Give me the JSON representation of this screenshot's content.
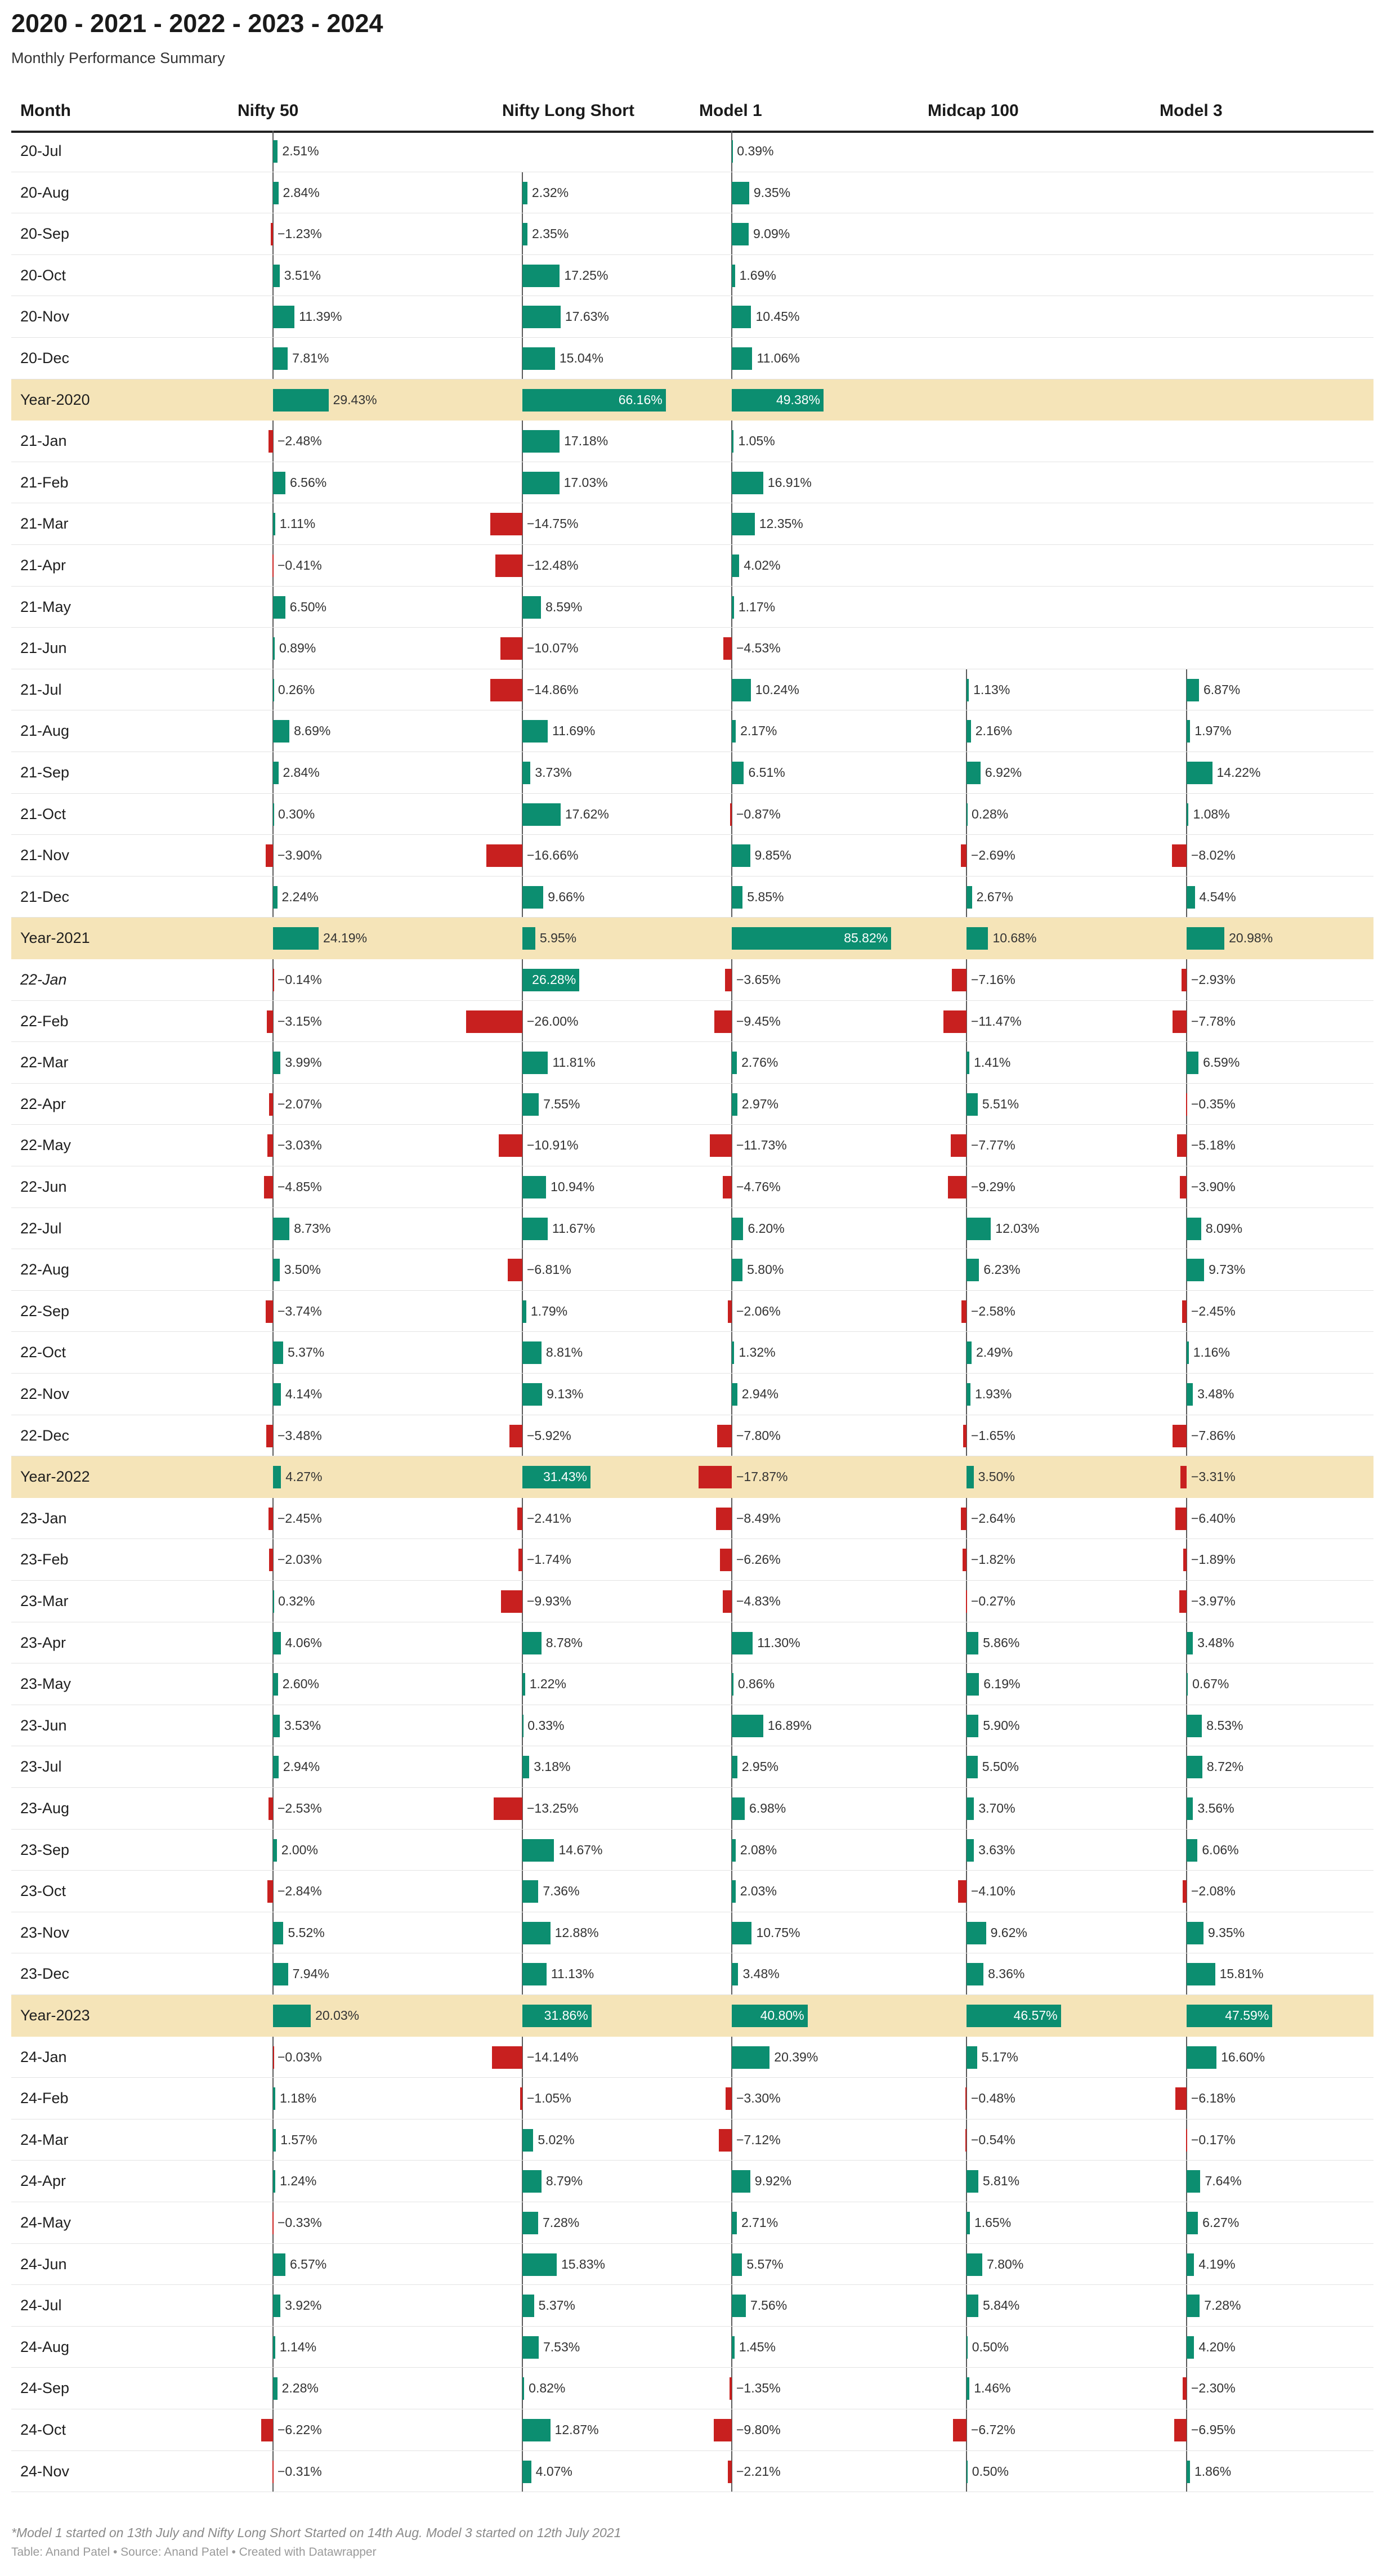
{
  "title": "2020 - 2021 - 2022 - 2023 - 2024",
  "subtitle": "Monthly Performance Summary",
  "footnote": "*Model 1 started on 13th July and Nifty Long Short Started on 14th Aug. Model 3 started on 12th July 2021",
  "credit": "Table: Anand Patel • Source: Anand Patel • Created with Datawrapper",
  "colors": {
    "positive": "#0c8e70",
    "negative": "#c8201f",
    "year_row": "#f5e4b8"
  },
  "chart_data": {
    "type": "table",
    "title": "2020 - 2021 - 2022 - 2023 - 2024",
    "subtitle": "Monthly Performance Summary",
    "month_header": "Month",
    "columns": [
      "Nifty 50",
      "Nifty Long Short",
      "Model 1",
      "Midcap 100",
      "Model 3"
    ],
    "rows": [
      {
        "label": "20-Jul",
        "values": [
          2.51,
          null,
          0.39,
          null,
          null
        ]
      },
      {
        "label": "20-Aug",
        "values": [
          2.84,
          2.32,
          9.35,
          null,
          null
        ]
      },
      {
        "label": "20-Sep",
        "values": [
          -1.23,
          2.35,
          9.09,
          null,
          null
        ]
      },
      {
        "label": "20-Oct",
        "values": [
          3.51,
          17.25,
          1.69,
          null,
          null
        ]
      },
      {
        "label": "20-Nov",
        "values": [
          11.39,
          17.63,
          10.45,
          null,
          null
        ]
      },
      {
        "label": "20-Dec",
        "values": [
          7.81,
          15.04,
          11.06,
          null,
          null
        ]
      },
      {
        "label": "Year-2020",
        "year": true,
        "values": [
          29.43,
          66.16,
          49.38,
          null,
          null
        ]
      },
      {
        "label": "21-Jan",
        "values": [
          -2.48,
          17.18,
          1.05,
          null,
          null
        ]
      },
      {
        "label": "21-Feb",
        "values": [
          6.56,
          17.03,
          16.91,
          null,
          null
        ]
      },
      {
        "label": "21-Mar",
        "values": [
          1.11,
          -14.75,
          12.35,
          null,
          null
        ]
      },
      {
        "label": "21-Apr",
        "values": [
          -0.41,
          -12.48,
          4.02,
          null,
          null
        ]
      },
      {
        "label": "21-May",
        "values": [
          6.5,
          8.59,
          1.17,
          null,
          null
        ]
      },
      {
        "label": "21-Jun",
        "values": [
          0.89,
          -10.07,
          -4.53,
          null,
          null
        ]
      },
      {
        "label": "21-Jul",
        "values": [
          0.26,
          -14.86,
          10.24,
          1.13,
          6.87
        ]
      },
      {
        "label": "21-Aug",
        "values": [
          8.69,
          11.69,
          2.17,
          2.16,
          1.97
        ]
      },
      {
        "label": "21-Sep",
        "values": [
          2.84,
          3.73,
          6.51,
          6.92,
          14.22
        ]
      },
      {
        "label": "21-Oct",
        "values": [
          0.3,
          17.62,
          -0.87,
          0.28,
          1.08
        ]
      },
      {
        "label": "21-Nov",
        "values": [
          -3.9,
          -16.66,
          9.85,
          -2.69,
          -8.02
        ]
      },
      {
        "label": "21-Dec",
        "values": [
          2.24,
          9.66,
          5.85,
          2.67,
          4.54
        ]
      },
      {
        "label": "Year-2021",
        "year": true,
        "values": [
          24.19,
          5.95,
          85.82,
          10.68,
          20.98
        ]
      },
      {
        "label": "22-Jan",
        "italic": true,
        "values": [
          -0.14,
          26.28,
          -3.65,
          -7.16,
          -2.93
        ]
      },
      {
        "label": "22-Feb",
        "values": [
          -3.15,
          -26.0,
          -9.45,
          -11.47,
          -7.78
        ]
      },
      {
        "label": "22-Mar",
        "values": [
          3.99,
          11.81,
          2.76,
          1.41,
          6.59
        ]
      },
      {
        "label": "22-Apr",
        "values": [
          -2.07,
          7.55,
          2.97,
          5.51,
          -0.35
        ]
      },
      {
        "label": "22-May",
        "values": [
          -3.03,
          -10.91,
          -11.73,
          -7.77,
          -5.18
        ]
      },
      {
        "label": "22-Jun",
        "values": [
          -4.85,
          10.94,
          -4.76,
          -9.29,
          -3.9
        ]
      },
      {
        "label": "22-Jul",
        "values": [
          8.73,
          11.67,
          6.2,
          12.03,
          8.09
        ]
      },
      {
        "label": "22-Aug",
        "values": [
          3.5,
          -6.81,
          5.8,
          6.23,
          9.73
        ]
      },
      {
        "label": "22-Sep",
        "values": [
          -3.74,
          1.79,
          -2.06,
          -2.58,
          -2.45
        ]
      },
      {
        "label": "22-Oct",
        "values": [
          5.37,
          8.81,
          1.32,
          2.49,
          1.16
        ]
      },
      {
        "label": "22-Nov",
        "values": [
          4.14,
          9.13,
          2.94,
          1.93,
          3.48
        ]
      },
      {
        "label": "22-Dec",
        "values": [
          -3.48,
          -5.92,
          -7.8,
          -1.65,
          -7.86
        ]
      },
      {
        "label": "Year-2022",
        "year": true,
        "values": [
          4.27,
          31.43,
          -17.87,
          3.5,
          -3.31
        ]
      },
      {
        "label": "23-Jan",
        "values": [
          -2.45,
          -2.41,
          -8.49,
          -2.64,
          -6.4
        ]
      },
      {
        "label": "23-Feb",
        "values": [
          -2.03,
          -1.74,
          -6.26,
          -1.82,
          -1.89
        ]
      },
      {
        "label": "23-Mar",
        "values": [
          0.32,
          -9.93,
          -4.83,
          -0.27,
          -3.97
        ]
      },
      {
        "label": "23-Apr",
        "values": [
          4.06,
          8.78,
          11.3,
          5.86,
          3.48
        ]
      },
      {
        "label": "23-May",
        "values": [
          2.6,
          1.22,
          0.86,
          6.19,
          0.67
        ]
      },
      {
        "label": "23-Jun",
        "values": [
          3.53,
          0.33,
          16.89,
          5.9,
          8.53
        ]
      },
      {
        "label": "23-Jul",
        "values": [
          2.94,
          3.18,
          2.95,
          5.5,
          8.72
        ]
      },
      {
        "label": "23-Aug",
        "values": [
          -2.53,
          -13.25,
          6.98,
          3.7,
          3.56
        ]
      },
      {
        "label": "23-Sep",
        "values": [
          2.0,
          14.67,
          2.08,
          3.63,
          6.06
        ]
      },
      {
        "label": "23-Oct",
        "values": [
          -2.84,
          7.36,
          2.03,
          -4.1,
          -2.08
        ]
      },
      {
        "label": "23-Nov",
        "values": [
          5.52,
          12.88,
          10.75,
          9.62,
          9.35
        ]
      },
      {
        "label": "23-Dec",
        "values": [
          7.94,
          11.13,
          3.48,
          8.36,
          15.81
        ]
      },
      {
        "label": "Year-2023",
        "year": true,
        "values": [
          20.03,
          31.86,
          40.8,
          46.57,
          47.59
        ]
      },
      {
        "label": "24-Jan",
        "values": [
          -0.03,
          -14.14,
          20.39,
          5.17,
          16.6
        ]
      },
      {
        "label": "24-Feb",
        "values": [
          1.18,
          -1.05,
          -3.3,
          -0.48,
          -6.18
        ]
      },
      {
        "label": "24-Mar",
        "values": [
          1.57,
          5.02,
          -7.12,
          -0.54,
          -0.17
        ]
      },
      {
        "label": "24-Apr",
        "values": [
          1.24,
          8.79,
          9.92,
          5.81,
          7.64
        ]
      },
      {
        "label": "24-May",
        "values": [
          -0.33,
          7.28,
          2.71,
          1.65,
          6.27
        ]
      },
      {
        "label": "24-Jun",
        "values": [
          6.57,
          15.83,
          5.57,
          7.8,
          4.19
        ]
      },
      {
        "label": "24-Jul",
        "values": [
          3.92,
          5.37,
          7.56,
          5.84,
          7.28
        ]
      },
      {
        "label": "24-Aug",
        "values": [
          1.14,
          7.53,
          1.45,
          0.5,
          4.2
        ]
      },
      {
        "label": "24-Sep",
        "values": [
          2.28,
          0.82,
          -1.35,
          1.46,
          -2.3
        ]
      },
      {
        "label": "24-Oct",
        "values": [
          -6.22,
          12.87,
          -9.8,
          -6.72,
          -6.95
        ]
      },
      {
        "label": "24-Nov",
        "values": [
          -0.31,
          4.07,
          -2.21,
          0.5,
          1.86
        ]
      }
    ]
  }
}
